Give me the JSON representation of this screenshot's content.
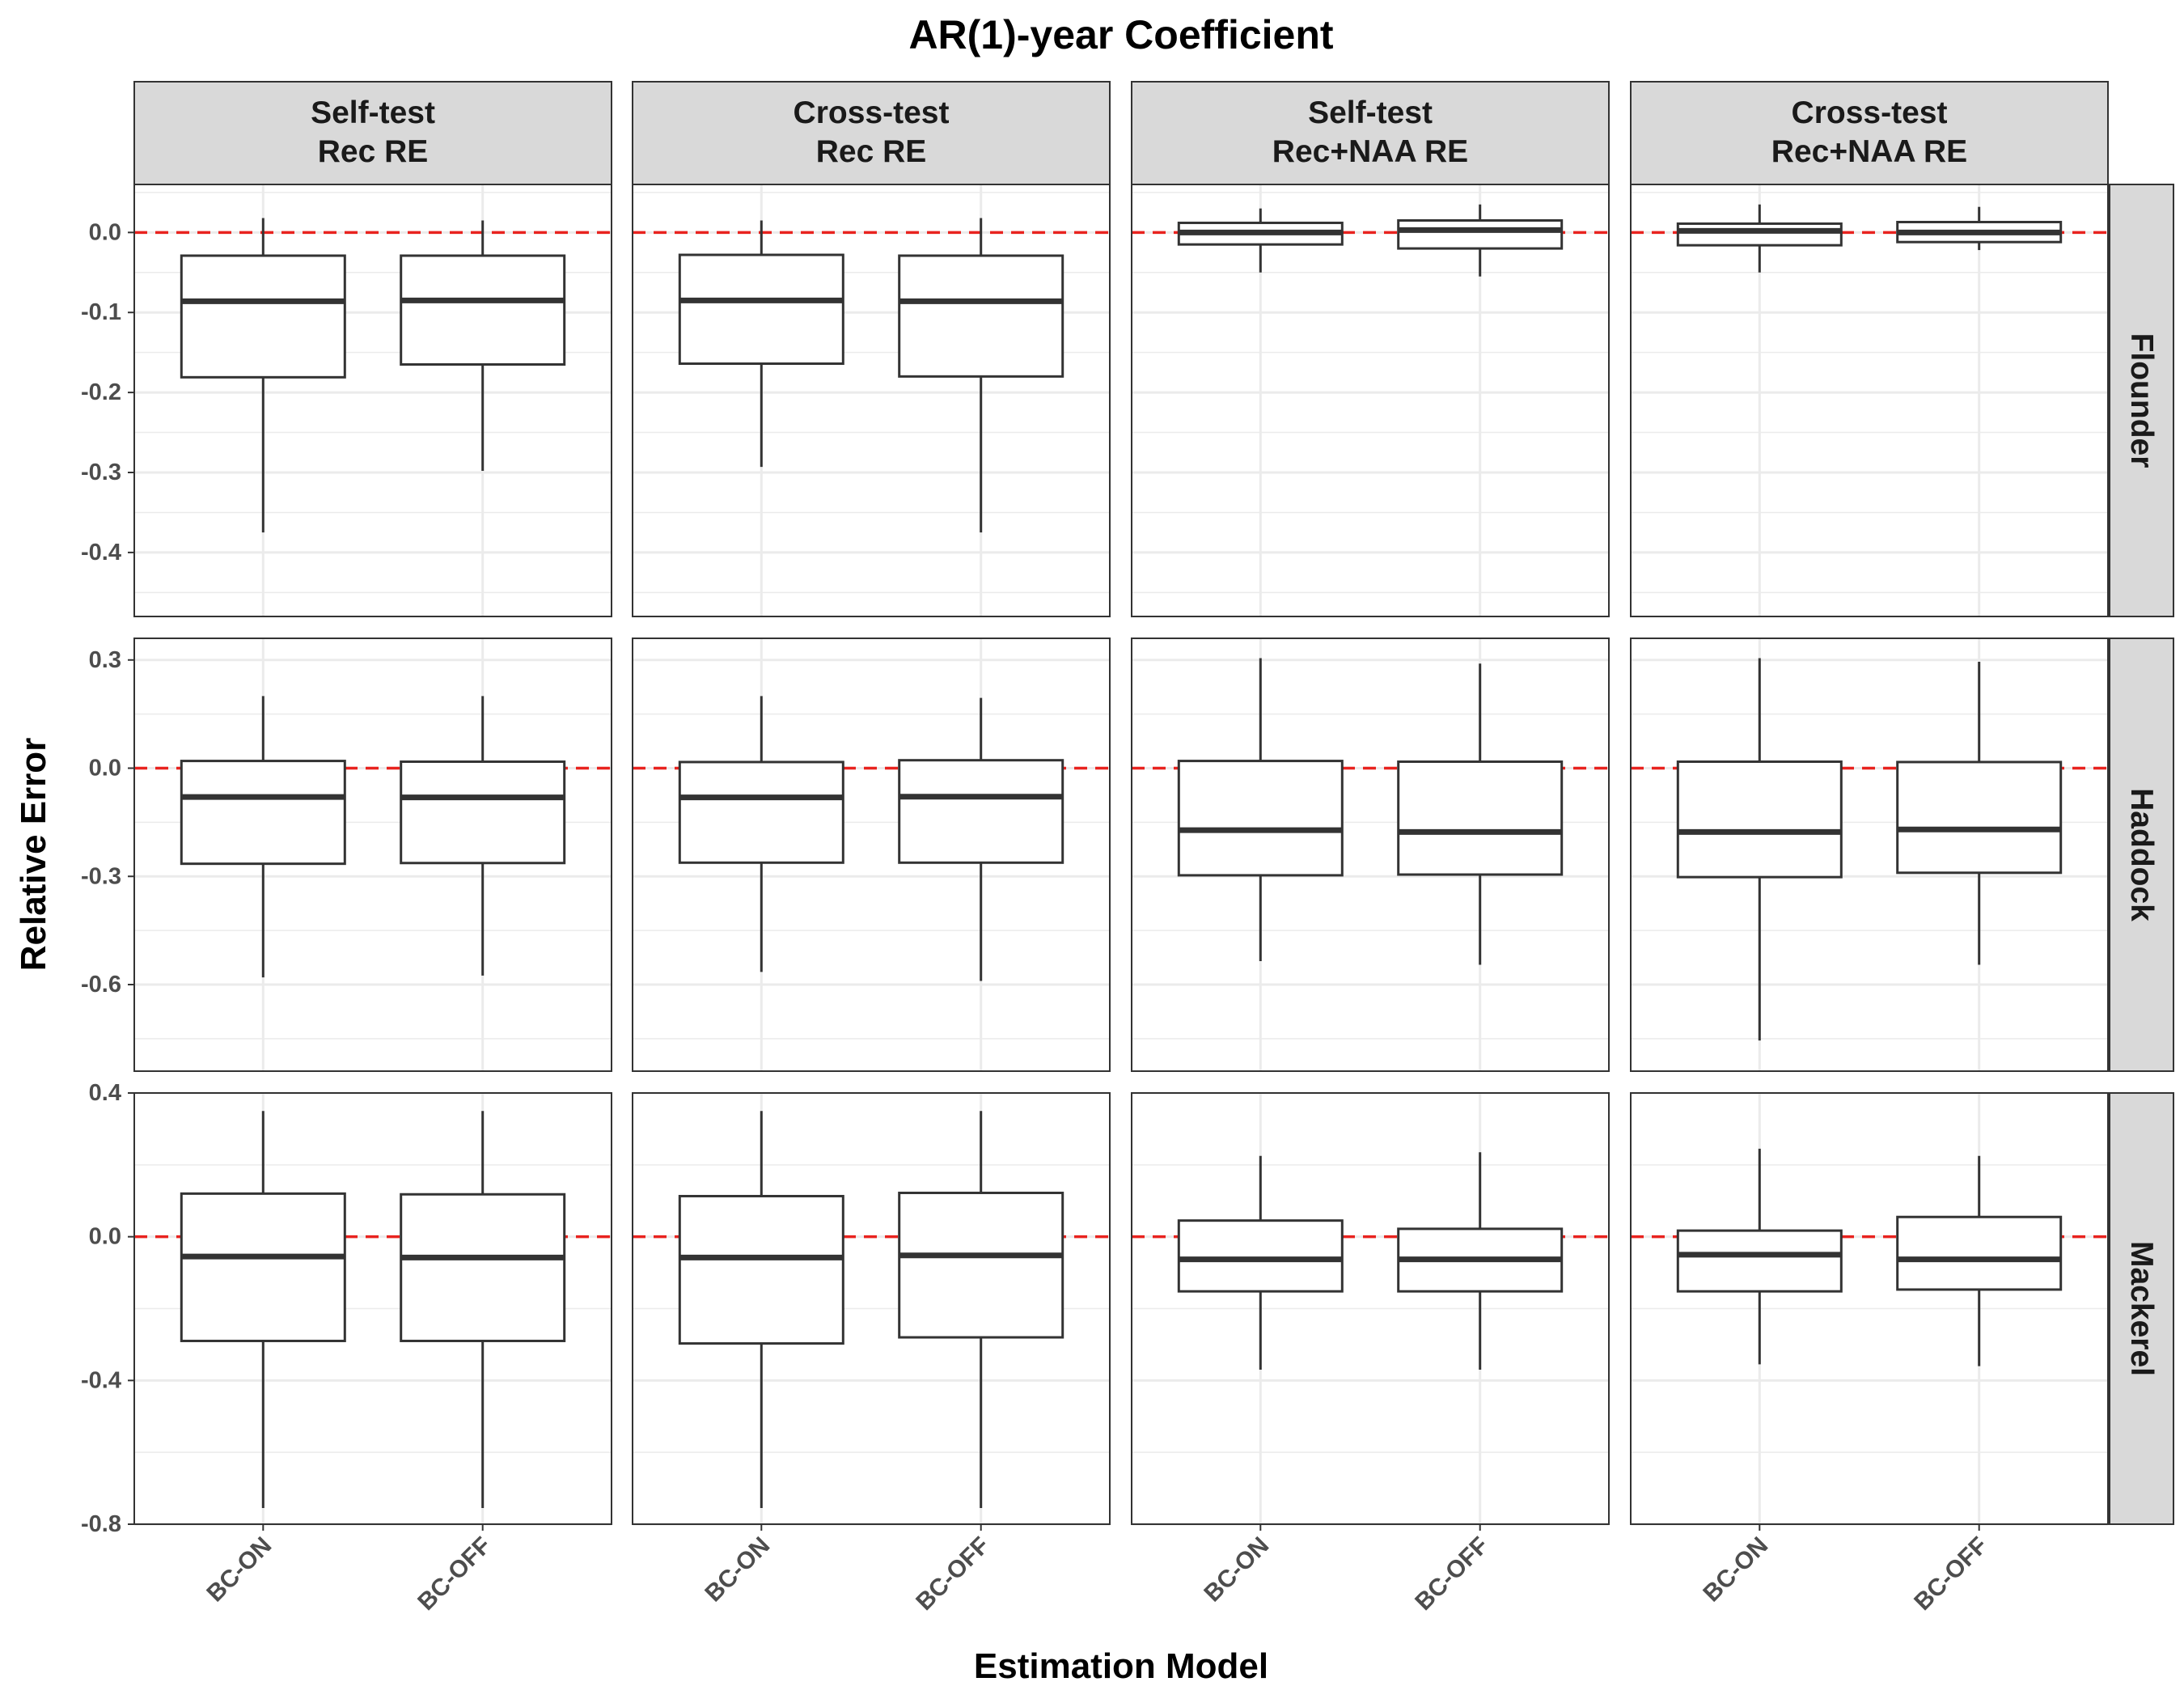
{
  "chart_data": {
    "type": "boxplot",
    "title": "AR(1)-year Coefficient",
    "xlabel": "Estimation Model",
    "ylabel": "Relative Error",
    "categories": [
      "BC-ON",
      "BC-OFF"
    ],
    "columns": [
      {
        "line1": "Self-test",
        "line2": "Rec RE"
      },
      {
        "line1": "Cross-test",
        "line2": "Rec RE"
      },
      {
        "line1": "Self-test",
        "line2": "Rec+NAA RE"
      },
      {
        "line1": "Cross-test",
        "line2": "Rec+NAA RE"
      }
    ],
    "rows": [
      {
        "name": "Flounder",
        "ylim": [
          -0.48,
          0.06
        ],
        "ticks": [
          0.0,
          -0.1,
          -0.2,
          -0.3,
          -0.4
        ],
        "tick_labels": [
          "0.0",
          "-0.1",
          "-0.2",
          "-0.3",
          "-0.4"
        ],
        "minor_ticks": [
          0.05,
          -0.05,
          -0.15,
          -0.25,
          -0.35,
          -0.45
        ],
        "panels": [
          [
            {
              "min": -0.375,
              "q1": -0.181,
              "median": -0.086,
              "q3": -0.029,
              "max": 0.018
            },
            {
              "min": -0.298,
              "q1": -0.165,
              "median": -0.085,
              "q3": -0.029,
              "max": 0.015
            }
          ],
          [
            {
              "min": -0.293,
              "q1": -0.164,
              "median": -0.085,
              "q3": -0.028,
              "max": 0.015
            },
            {
              "min": -0.375,
              "q1": -0.18,
              "median": -0.086,
              "q3": -0.029,
              "max": 0.018
            }
          ],
          [
            {
              "min": -0.05,
              "q1": -0.015,
              "median": 0.0,
              "q3": 0.012,
              "max": 0.03
            },
            {
              "min": -0.055,
              "q1": -0.02,
              "median": 0.003,
              "q3": 0.015,
              "max": 0.035
            }
          ],
          [
            {
              "min": -0.05,
              "q1": -0.016,
              "median": 0.002,
              "q3": 0.011,
              "max": 0.035
            },
            {
              "min": -0.022,
              "q1": -0.012,
              "median": 0.0,
              "q3": 0.013,
              "max": 0.032
            }
          ]
        ]
      },
      {
        "name": "Haddock",
        "ylim": [
          -0.84,
          0.36
        ],
        "ticks": [
          0.3,
          0.0,
          -0.3,
          -0.6
        ],
        "tick_labels": [
          "0.3",
          "0.0",
          "-0.3",
          "-0.6"
        ],
        "minor_ticks": [
          0.15,
          -0.15,
          -0.45,
          -0.75
        ],
        "panels": [
          [
            {
              "min": -0.58,
              "q1": -0.265,
              "median": -0.08,
              "q3": 0.02,
              "max": 0.2
            },
            {
              "min": -0.575,
              "q1": -0.263,
              "median": -0.081,
              "q3": 0.018,
              "max": 0.2
            }
          ],
          [
            {
              "min": -0.565,
              "q1": -0.262,
              "median": -0.081,
              "q3": 0.017,
              "max": 0.2
            },
            {
              "min": -0.59,
              "q1": -0.262,
              "median": -0.079,
              "q3": 0.022,
              "max": 0.195
            }
          ],
          [
            {
              "min": -0.535,
              "q1": -0.297,
              "median": -0.172,
              "q3": 0.02,
              "max": 0.305
            },
            {
              "min": -0.545,
              "q1": -0.295,
              "median": -0.177,
              "q3": 0.018,
              "max": 0.29
            }
          ],
          [
            {
              "min": -0.755,
              "q1": -0.302,
              "median": -0.177,
              "q3": 0.018,
              "max": 0.305
            },
            {
              "min": -0.545,
              "q1": -0.29,
              "median": -0.17,
              "q3": 0.017,
              "max": 0.295
            }
          ]
        ]
      },
      {
        "name": "Mackerel",
        "ylim": [
          -0.8,
          0.4
        ],
        "ticks": [
          0.4,
          0.0,
          -0.4,
          -0.8
        ],
        "tick_labels": [
          "0.4",
          "0.0",
          "-0.4",
          "-0.8"
        ],
        "minor_ticks": [
          0.2,
          -0.2,
          -0.6
        ],
        "panels": [
          [
            {
              "min": -0.755,
              "q1": -0.29,
              "median": -0.055,
              "q3": 0.12,
              "max": 0.35
            },
            {
              "min": -0.755,
              "q1": -0.29,
              "median": -0.058,
              "q3": 0.118,
              "max": 0.35
            }
          ],
          [
            {
              "min": -0.755,
              "q1": -0.297,
              "median": -0.058,
              "q3": 0.113,
              "max": 0.35
            },
            {
              "min": -0.755,
              "q1": -0.28,
              "median": -0.052,
              "q3": 0.122,
              "max": 0.35
            }
          ],
          [
            {
              "min": -0.37,
              "q1": -0.152,
              "median": -0.063,
              "q3": 0.045,
              "max": 0.225
            },
            {
              "min": -0.37,
              "q1": -0.152,
              "median": -0.063,
              "q3": 0.022,
              "max": 0.235
            }
          ],
          [
            {
              "min": -0.355,
              "q1": -0.152,
              "median": -0.05,
              "q3": 0.017,
              "max": 0.245
            },
            {
              "min": -0.36,
              "q1": -0.147,
              "median": -0.063,
              "q3": 0.055,
              "max": 0.225
            }
          ]
        ]
      }
    ],
    "reference_line": {
      "y": 0.0,
      "color": "#e8231f",
      "style": "dashed"
    },
    "colors": {
      "box_fill": "#ffffff",
      "box_stroke": "#333333",
      "strip_fill": "#d9d9d9",
      "grid": "#ebebeb"
    },
    "grid": true,
    "legend": "none"
  }
}
